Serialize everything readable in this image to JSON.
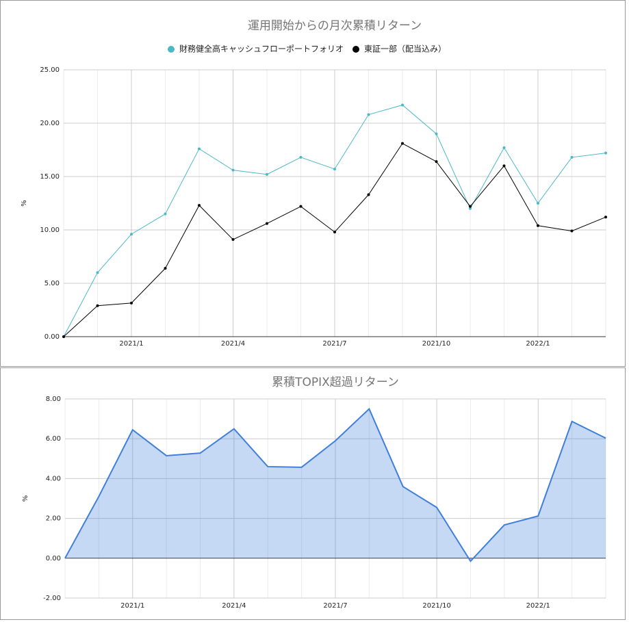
{
  "chart_data": [
    {
      "type": "line",
      "title": "運用開始からの月次累積リターン",
      "y_label": "%",
      "categories": [
        null,
        null,
        "2021/1",
        null,
        null,
        "2021/4",
        null,
        null,
        "2021/7",
        null,
        null,
        "2021/10",
        null,
        null,
        "2022/1",
        null,
        null
      ],
      "series": [
        {
          "name": "財務健全高キャッシュフローポートフォリオ",
          "color": "#4bb8c8",
          "values": [
            0,
            6.0,
            9.6,
            11.5,
            17.6,
            15.6,
            15.2,
            16.8,
            15.7,
            20.8,
            21.7,
            19.0,
            12.0,
            17.7,
            12.5,
            16.8,
            17.2
          ]
        },
        {
          "name": "東証一部（配当込み）",
          "color": "#000000",
          "values": [
            0,
            2.9,
            3.15,
            6.4,
            12.3,
            9.1,
            10.6,
            12.2,
            9.8,
            13.3,
            18.1,
            16.4,
            12.2,
            16.0,
            10.4,
            9.9,
            11.2
          ]
        }
      ],
      "ylim": [
        0,
        25
      ],
      "yticks": [
        {
          "value": 0,
          "label": "0.00"
        },
        {
          "value": 5,
          "label": "5.00"
        },
        {
          "value": 10,
          "label": "10.00"
        },
        {
          "value": 15,
          "label": "15.00"
        },
        {
          "value": 20,
          "label": "20.00"
        },
        {
          "value": 25,
          "label": "25.00"
        }
      ],
      "grid": true
    },
    {
      "type": "area",
      "title": "累積TOPIX超過リターン",
      "y_label": "%",
      "categories": [
        null,
        null,
        "2021/1",
        null,
        null,
        "2021/4",
        null,
        null,
        "2021/7",
        null,
        null,
        "2021/10",
        null,
        null,
        "2022/1",
        null,
        null
      ],
      "series": [
        {
          "color": "#3f7fd9",
          "values": [
            0,
            3.1,
            6.45,
            5.15,
            5.28,
            6.5,
            4.6,
            4.57,
            5.9,
            7.5,
            3.6,
            2.55,
            -0.15,
            1.67,
            2.12,
            6.87,
            6.03
          ]
        }
      ],
      "ylim": [
        -2,
        8
      ],
      "yticks": [
        {
          "value": -2,
          "label": "-2.00"
        },
        {
          "value": 0,
          "label": "0.00"
        },
        {
          "value": 2,
          "label": "2.00"
        },
        {
          "value": 4,
          "label": "4.00"
        },
        {
          "value": 6,
          "label": "6.00"
        },
        {
          "value": 8,
          "label": "8.00"
        }
      ],
      "grid": true
    }
  ]
}
